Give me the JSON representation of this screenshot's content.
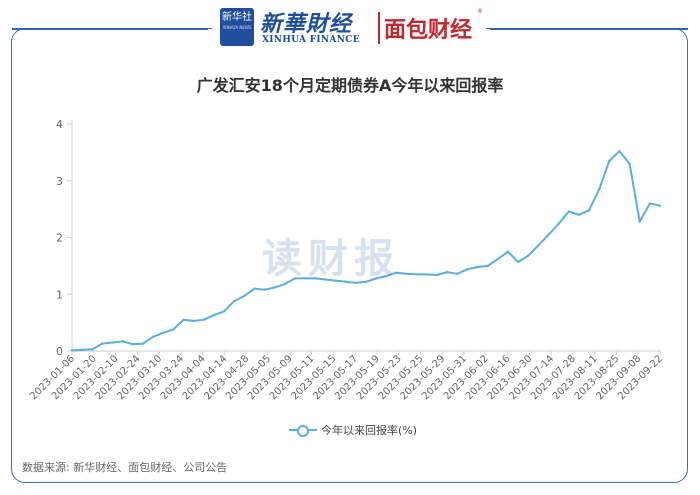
{
  "header": {
    "logo_box_text": "新华社",
    "logo_box_subtext": "XINHUA NEWS",
    "xinhua_logo_text": "新華財经",
    "xinhua_logo_en": "XINHUA FINANCE",
    "partner_logo_text": "面包财经",
    "partner_logo_mark": "®"
  },
  "watermark": "读财报",
  "source": "数据来源: 新华财经、面包财经、公司公告",
  "colors": {
    "line": "#5aafdc",
    "frame": "#3a6fb0",
    "brand_blue": "#1f4e9c",
    "brand_red": "#c1272d"
  },
  "chart_data": {
    "type": "line",
    "title": "广发汇安18个月定期债券A今年以来回报率",
    "xlabel": "",
    "ylabel": "",
    "ylim": [
      0,
      4
    ],
    "yticks": [
      "0",
      "1",
      "2",
      "3",
      "4"
    ],
    "grid": false,
    "legend_position": "bottom",
    "tick_labels": [
      "2023-01-06",
      "2023-01-20",
      "2023-02-10",
      "2023-02-24",
      "2023-03-10",
      "2023-03-24",
      "2023-04-04",
      "2023-04-14",
      "2023-04-28",
      "2023-05-05",
      "2023-05-09",
      "2023-05-11",
      "2023-05-15",
      "2023-05-17",
      "2023-05-19",
      "2023-05-23",
      "2023-05-25",
      "2023-05-29",
      "2023-05-31",
      "2023-06-02",
      "2023-06-16",
      "2023-06-30",
      "2023-07-14",
      "2023-07-28",
      "2023-08-11",
      "2023-08-25",
      "2023-09-08",
      "2023-09-22"
    ],
    "series": [
      {
        "name": "今年以来回报率(%)",
        "values": [
          0.01,
          0.02,
          0.03,
          0.13,
          0.15,
          0.17,
          0.12,
          0.13,
          0.25,
          0.32,
          0.38,
          0.55,
          0.53,
          0.55,
          0.63,
          0.7,
          0.88,
          0.97,
          1.1,
          1.08,
          1.12,
          1.18,
          1.28,
          1.28,
          1.28,
          1.26,
          1.24,
          1.22,
          1.2,
          1.22,
          1.28,
          1.32,
          1.38,
          1.36,
          1.35,
          1.35,
          1.34,
          1.39,
          1.36,
          1.44,
          1.48,
          1.5,
          1.62,
          1.75,
          1.57,
          1.68,
          1.86,
          2.05,
          2.24,
          2.46,
          2.4,
          2.48,
          2.85,
          3.35,
          3.52,
          3.3,
          2.28,
          2.6,
          2.56
        ]
      }
    ]
  }
}
